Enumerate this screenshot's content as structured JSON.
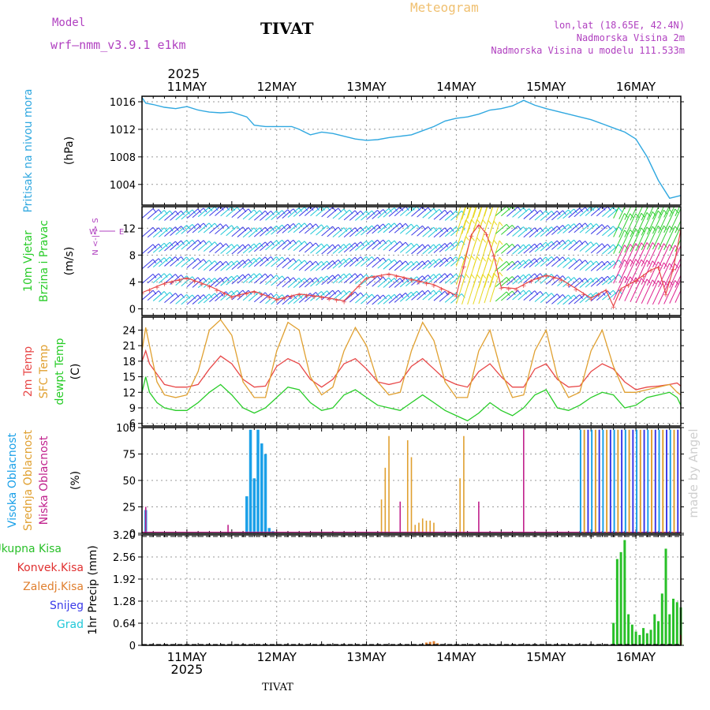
{
  "header": {
    "meteogram_label": "Meteogram",
    "model_label": "Model",
    "model_name": "wrf—nmm_v3.9.1  e1km",
    "location_title": "TIVAT",
    "coords": "lon,lat (18.65E, 42.4N)",
    "altitude": "Nadmorska Visina 2m",
    "model_altitude": "Nadmorska Visina u modelu 111.533m",
    "credit": "made by Angel",
    "footer_location": "TIVAT"
  },
  "colors": {
    "title_orange": "#f0c070",
    "purple": "#b040c0",
    "pressure": "#30a8e0",
    "temp2m": "#e84848",
    "sfc": "#e0a030",
    "dewpt": "#28cc28",
    "cloud_high": "#1aa0e8",
    "cloud_mid": "#e0a030",
    "cloud_low": "#c0208c",
    "precip_total": "#28c028",
    "precip_conv": "#e03030",
    "wind_cyan": "#20c8d8",
    "wind_blue": "#3a3ae8",
    "wind_yellow": "#e8d820",
    "wind_green": "#30d030",
    "wind_magenta": "#e02090"
  },
  "chart_data": [
    {
      "type": "line",
      "panel": "pressure",
      "ylabel": [
        "Pritisak na nivou mora",
        "(hPa)"
      ],
      "time_axis": {
        "year": "2025",
        "day_labels": [
          "11MAY",
          "12MAY",
          "13MAY",
          "14MAY",
          "15MAY",
          "16MAY"
        ],
        "start": "2025-05-10 12:00",
        "end": "2025-05-16 12:00",
        "label_sub": "2025"
      },
      "ylim": [
        1001,
        1016.8
      ],
      "yticks": [
        1004,
        1008,
        1012,
        1016
      ],
      "series": [
        {
          "x_hours": [
            0,
            1,
            3,
            6,
            9,
            12,
            15,
            18,
            21,
            24,
            28,
            30,
            33,
            36,
            40,
            42,
            45,
            48,
            51,
            54,
            57,
            60,
            63,
            66,
            69,
            72,
            75,
            78,
            81,
            84,
            87,
            90,
            93,
            96,
            99,
            102,
            105,
            108,
            111,
            114,
            117,
            120,
            123,
            126,
            129,
            132,
            135,
            138,
            141,
            144
          ],
          "values": [
            1016.6,
            1015.8,
            1015.6,
            1015.2,
            1015.0,
            1015.3,
            1014.8,
            1014.5,
            1014.4,
            1014.5,
            1013.8,
            1012.6,
            1012.4,
            1012.4,
            1012.4,
            1012.0,
            1011.2,
            1011.6,
            1011.4,
            1011.0,
            1010.6,
            1010.4,
            1010.5,
            1010.8,
            1011.0,
            1011.2,
            1011.8,
            1012.4,
            1013.2,
            1013.6,
            1013.8,
            1014.2,
            1014.8,
            1015.0,
            1015.4,
            1016.2,
            1015.5,
            1015.0,
            1014.6,
            1014.2,
            1013.8,
            1013.4,
            1012.8,
            1012.2,
            1011.6,
            1010.6,
            1008.0,
            1004.6,
            1002.0,
            1002.4
          ]
        }
      ]
    },
    {
      "type": "line",
      "panel": "wind",
      "ylabel": [
        "10m Vjetar",
        "Brzina i Pravac",
        "(m/s)"
      ],
      "compass": "N  S  E  W",
      "ylim": [
        -1,
        15.2
      ],
      "yticks": [
        0,
        4,
        8,
        12
      ],
      "series": [
        {
          "name": "wind speed",
          "x_hours": [
            0,
            6,
            12,
            18,
            24,
            30,
            36,
            42,
            48,
            54,
            60,
            66,
            72,
            78,
            84,
            86,
            88,
            90,
            92,
            94,
            96,
            100,
            104,
            108,
            112,
            116,
            120,
            124,
            126,
            128,
            132,
            136,
            138,
            140,
            142,
            144
          ],
          "values": [
            2.4,
            3.8,
            4.6,
            3.4,
            1.8,
            2.6,
            1.4,
            2.2,
            1.8,
            1.2,
            4.6,
            5.2,
            4.4,
            3.6,
            2.0,
            6.4,
            11.0,
            12.5,
            11.2,
            8.0,
            3.2,
            3.0,
            4.2,
            5.0,
            4.4,
            3.0,
            1.6,
            2.8,
            0.4,
            3.0,
            4.2,
            5.8,
            6.2,
            2.2,
            6.0,
            11.8
          ]
        }
      ]
    },
    {
      "type": "line",
      "panel": "temperature",
      "ylabel": [
        "2m Temp",
        "SFC Temp",
        "dewpt Temp",
        "(C)"
      ],
      "ylim": [
        5.5,
        26.5
      ],
      "yticks": [
        6,
        9,
        12,
        15,
        18,
        21,
        24
      ],
      "x_hours": [
        0,
        1,
        2,
        4,
        6,
        9,
        12,
        15,
        18,
        21,
        24,
        27,
        30,
        33,
        36,
        39,
        42,
        45,
        48,
        51,
        54,
        57,
        60,
        63,
        66,
        69,
        72,
        75,
        78,
        81,
        84,
        87,
        90,
        93,
        96,
        99,
        102,
        105,
        108,
        111,
        114,
        117,
        120,
        123,
        126,
        129,
        132,
        135,
        138,
        141,
        143,
        144
      ],
      "series": [
        {
          "name": "2m Temp",
          "values": [
            18.0,
            20.0,
            17.5,
            15.5,
            13.5,
            13.0,
            13.0,
            13.5,
            16.5,
            19.0,
            17.5,
            14.5,
            13.0,
            13.2,
            17.0,
            18.5,
            17.5,
            14.5,
            13.0,
            14.5,
            17.5,
            18.5,
            16.5,
            14.0,
            13.5,
            14.0,
            17.0,
            18.5,
            16.5,
            14.5,
            13.5,
            13.0,
            16.0,
            17.5,
            15.0,
            13.0,
            13.0,
            16.5,
            17.5,
            14.5,
            13.0,
            13.2,
            16.0,
            17.5,
            16.5,
            14.0,
            12.5,
            13.0,
            13.2,
            13.5,
            13.8,
            13.2
          ]
        },
        {
          "name": "SFC Temp",
          "values": [
            20.0,
            24.5,
            21.0,
            14.0,
            11.5,
            11.0,
            11.5,
            16.0,
            24.0,
            26.0,
            23.0,
            14.0,
            11.0,
            11.0,
            20.0,
            25.5,
            24.0,
            15.0,
            11.5,
            13.0,
            20.0,
            24.5,
            21.0,
            14.0,
            11.5,
            12.0,
            20.0,
            25.5,
            22.0,
            14.0,
            11.0,
            11.0,
            20.0,
            24.0,
            16.0,
            11.0,
            11.5,
            20.0,
            24.0,
            15.0,
            11.0,
            12.0,
            20.0,
            24.0,
            17.0,
            12.0,
            12.0,
            12.5,
            13.0,
            13.5,
            12.0,
            11.5
          ]
        },
        {
          "name": "dewpt Temp",
          "values": [
            12.0,
            15.0,
            12.0,
            10.0,
            9.0,
            8.5,
            8.5,
            10.0,
            12.0,
            13.5,
            11.5,
            9.0,
            8.0,
            9.0,
            11.0,
            13.0,
            12.5,
            10.0,
            8.5,
            9.0,
            11.5,
            12.5,
            11.0,
            9.5,
            9.0,
            8.5,
            10.0,
            11.5,
            10.0,
            8.5,
            7.5,
            6.5,
            8.0,
            10.0,
            8.5,
            7.5,
            9.0,
            11.5,
            12.5,
            9.0,
            8.5,
            9.5,
            11.0,
            12.0,
            11.5,
            9.0,
            9.5,
            11.0,
            11.5,
            12.0,
            11.0,
            9.5
          ]
        }
      ]
    },
    {
      "type": "bar",
      "panel": "clouds",
      "ylabel": [
        "Visoka Oblacnost",
        "Srednja Oblacnost",
        "Niska Oblacnost",
        "(%)"
      ],
      "ylim": [
        0,
        100
      ],
      "yticks": [
        0,
        25,
        50,
        75,
        100
      ],
      "series": [
        {
          "name": "Visoka Oblacnost",
          "hours": [
            1,
            28,
            29,
            30,
            31,
            32,
            33,
            34,
            35
          ],
          "values": [
            22,
            35,
            98,
            52,
            98,
            85,
            75,
            5,
            2
          ]
        },
        {
          "name": "Srednja Oblacnost",
          "hours": [
            64,
            65,
            66,
            71,
            72,
            73,
            74,
            75,
            76,
            77,
            78,
            85,
            86
          ],
          "values": [
            32,
            62,
            92,
            88,
            72,
            8,
            10,
            14,
            12,
            12,
            10,
            52,
            92
          ]
        },
        {
          "name": "Niska Oblacnost",
          "hours": [
            1,
            23,
            69,
            90,
            102
          ],
          "values": [
            25,
            8,
            30,
            30,
            98
          ]
        },
        {
          "name": "overcast band",
          "hours_from": 117,
          "hours_to": 143,
          "values_note": "near 100"
        }
      ]
    },
    {
      "type": "bar",
      "panel": "precipitation",
      "ylabel": [
        "1hr Precip (mm)"
      ],
      "legend": [
        "Ukupna Kisa",
        "Konvek.Kisa",
        "Zaledj.Kisa",
        "Snijeg",
        "Grad"
      ],
      "ylim": [
        0,
        3.2
      ],
      "yticks": [
        0,
        0.64,
        1.28,
        1.92,
        2.56,
        3.2
      ],
      "series": [
        {
          "name": "Ukupna Kisa",
          "hours": [
            126,
            127,
            128,
            129,
            130,
            131,
            132,
            133,
            134,
            135,
            136,
            137,
            138,
            139,
            140,
            141,
            142,
            143,
            144
          ],
          "values": [
            0.65,
            2.5,
            2.7,
            3.05,
            0.9,
            0.6,
            0.4,
            0.3,
            0.5,
            0.35,
            0.45,
            0.9,
            0.7,
            1.5,
            2.8,
            0.9,
            1.35,
            1.25,
            1.1
          ]
        },
        {
          "name": "Konvek.Kisa",
          "hours": [
            144
          ],
          "values": [
            0.3
          ]
        },
        {
          "name": "Zaledj.Kisa",
          "hours": [
            76,
            77,
            78,
            79
          ],
          "values": [
            0.08,
            0.1,
            0.12,
            0.06
          ]
        }
      ]
    }
  ]
}
